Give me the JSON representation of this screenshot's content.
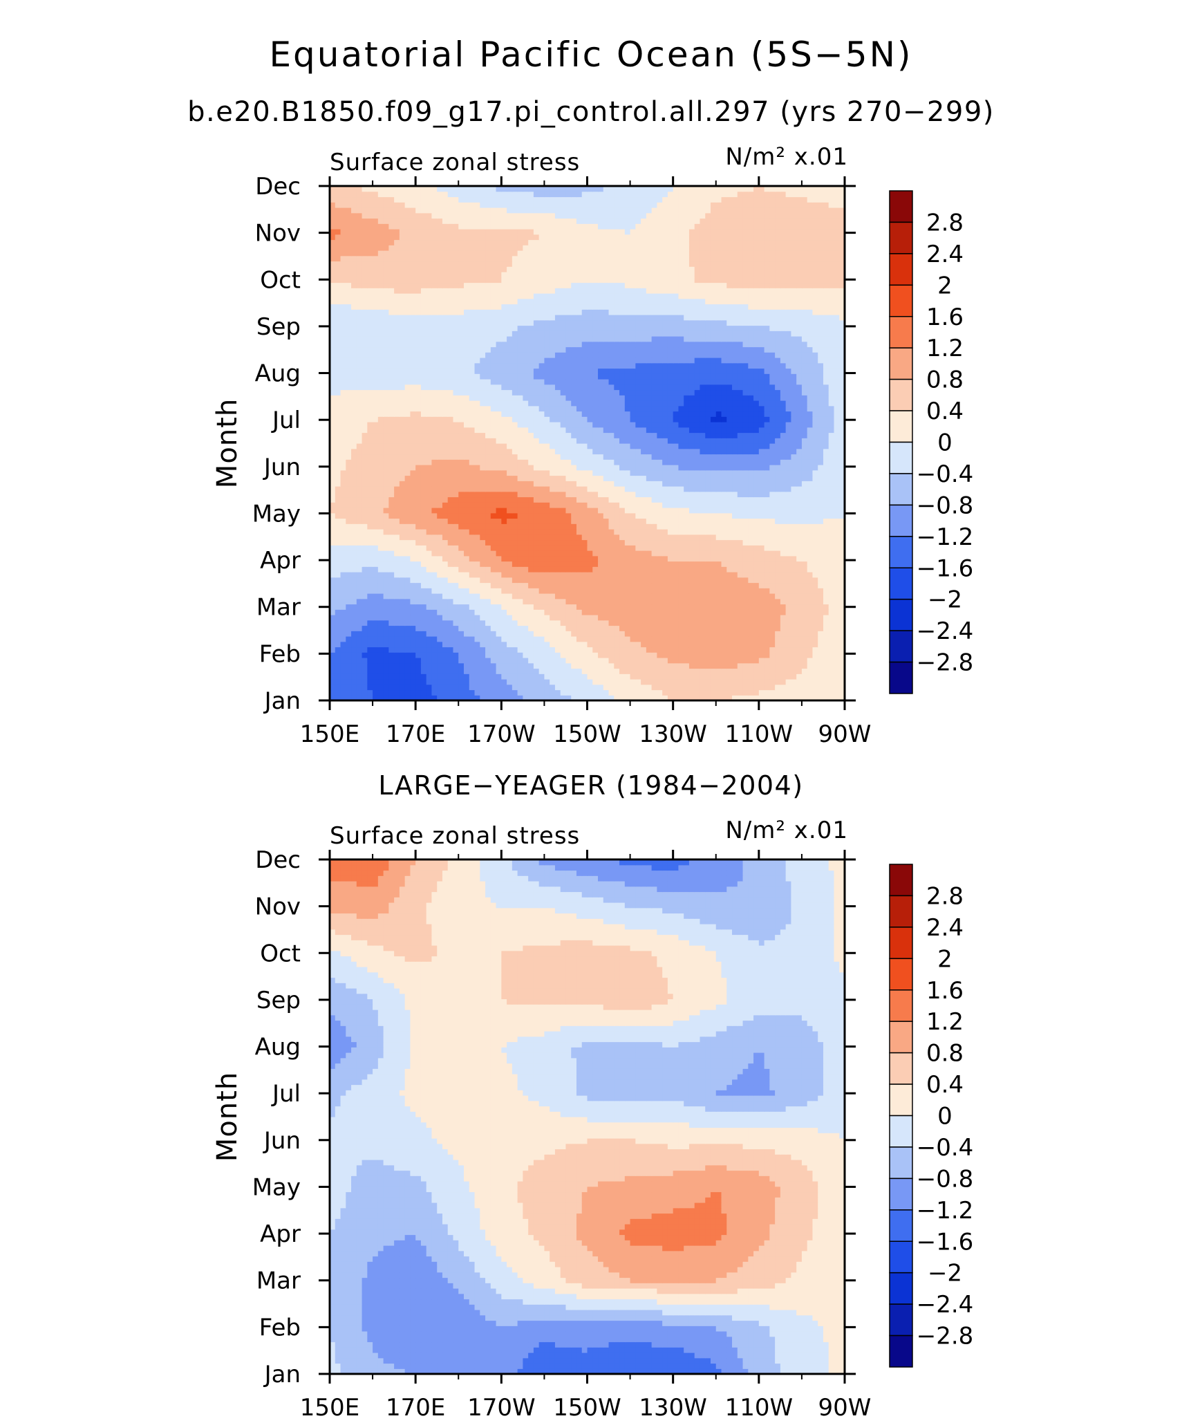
{
  "figure": {
    "title": "Equatorial Pacific Ocean (5S−5N)",
    "subtitle": "b.e20.B1850.f09_g17.pi_control.all.297 (yrs 270−299)",
    "second_panel_title": "LARGE−YEAGER (1984−2004)"
  },
  "colors": {
    "levels": [
      "#08088a",
      "#0a1fb0",
      "#0b33d4",
      "#1f4ee8",
      "#3f6ef0",
      "#7898f5",
      "#a9c2f7",
      "#d6e6fb",
      "#fdebd8",
      "#fbcdb4",
      "#f9a884",
      "#f77b4c",
      "#f0501f",
      "#d9310c",
      "#b71f09",
      "#8a0808"
    ]
  },
  "chart_data": [
    {
      "type": "heatmap",
      "title": "Surface zonal stress",
      "units": "N/m² x.01",
      "ylabel": "Month",
      "xlabel": "",
      "x_ticks": [
        "150E",
        "170E",
        "170W",
        "150W",
        "130W",
        "110W",
        "90W"
      ],
      "x_range": [
        150,
        270
      ],
      "y_ticks": [
        "Jan",
        "Feb",
        "Mar",
        "Apr",
        "May",
        "Jun",
        "Jul",
        "Aug",
        "Sep",
        "Oct",
        "Nov",
        "Dec"
      ],
      "colorbar_levels": [
        2.8,
        2.4,
        2,
        1.6,
        1.2,
        0.8,
        0.4,
        0,
        -0.4,
        -0.8,
        -1.2,
        -1.6,
        -2,
        -2.4,
        -2.8
      ],
      "x": [
        150,
        160,
        170,
        180,
        190,
        200,
        210,
        220,
        230,
        240,
        250,
        260,
        270
      ],
      "y": [
        "Jan",
        "Feb",
        "Mar",
        "Apr",
        "May",
        "Jun",
        "Jul",
        "Aug",
        "Sep",
        "Oct",
        "Nov",
        "Dec"
      ],
      "z": [
        [
          -1.2,
          -1.6,
          -1.8,
          -1.4,
          -1.0,
          -0.6,
          -0.3,
          0.1,
          0.4,
          0.4,
          0.3,
          0.2,
          0.0
        ],
        [
          -1.2,
          -1.7,
          -1.6,
          -1.2,
          -0.6,
          -0.2,
          0.3,
          0.7,
          0.9,
          1.0,
          0.9,
          0.5,
          0.1
        ],
        [
          -0.7,
          -1.0,
          -0.9,
          -0.5,
          0.0,
          0.5,
          0.9,
          1.0,
          1.0,
          1.0,
          1.0,
          0.7,
          0.2
        ],
        [
          -0.2,
          -0.3,
          0.0,
          0.6,
          1.2,
          1.5,
          1.3,
          1.0,
          0.8,
          0.8,
          0.6,
          0.4,
          0.1
        ],
        [
          0.4,
          0.7,
          1.1,
          1.4,
          1.7,
          1.5,
          1.0,
          0.4,
          0.1,
          0.0,
          -0.1,
          -0.1,
          0.0
        ],
        [
          0.3,
          0.6,
          0.8,
          0.9,
          0.7,
          0.3,
          -0.1,
          -0.5,
          -0.8,
          -0.9,
          -0.9,
          -0.6,
          -0.1
        ],
        [
          0.1,
          0.4,
          0.5,
          0.4,
          0.1,
          -0.3,
          -0.8,
          -1.2,
          -1.6,
          -2.1,
          -1.8,
          -1.0,
          -0.2
        ],
        [
          -0.1,
          -0.2,
          -0.2,
          -0.3,
          -0.6,
          -0.9,
          -1.2,
          -1.3,
          -1.4,
          -1.5,
          -1.3,
          -0.7,
          -0.1
        ],
        [
          -0.4,
          -0.3,
          -0.2,
          -0.2,
          -0.3,
          -0.5,
          -0.6,
          -0.6,
          -0.6,
          -0.5,
          -0.4,
          -0.3,
          -0.1
        ],
        [
          0.4,
          0.6,
          0.6,
          0.5,
          0.4,
          0.2,
          0.0,
          0.1,
          0.3,
          0.5,
          0.6,
          0.6,
          0.5
        ],
        [
          1.3,
          1.0,
          0.7,
          0.5,
          0.5,
          0.4,
          0.1,
          0.0,
          0.3,
          0.6,
          0.7,
          0.7,
          0.6
        ],
        [
          0.5,
          0.3,
          0.1,
          -0.2,
          -0.5,
          -0.6,
          -0.5,
          -0.3,
          0.0,
          0.3,
          0.4,
          0.3,
          0.2
        ]
      ]
    },
    {
      "type": "heatmap",
      "title": "Surface zonal stress",
      "units": "N/m² x.01",
      "ylabel": "Month",
      "xlabel": "",
      "x_ticks": [
        "150E",
        "170E",
        "170W",
        "150W",
        "130W",
        "110W",
        "90W"
      ],
      "x_range": [
        150,
        270
      ],
      "y_ticks": [
        "Jan",
        "Feb",
        "Mar",
        "Apr",
        "May",
        "Jun",
        "Jul",
        "Aug",
        "Sep",
        "Oct",
        "Nov",
        "Dec"
      ],
      "colorbar_levels": [
        2.8,
        2.4,
        2,
        1.6,
        1.2,
        0.8,
        0.4,
        0,
        -0.4,
        -0.8,
        -1.2,
        -1.6,
        -2,
        -2.4,
        -2.8
      ],
      "x": [
        150,
        160,
        170,
        180,
        190,
        200,
        210,
        220,
        230,
        240,
        250,
        260,
        270
      ],
      "y": [
        "Jan",
        "Feb",
        "Mar",
        "Apr",
        "May",
        "Jun",
        "Jul",
        "Aug",
        "Sep",
        "Oct",
        "Nov",
        "Dec"
      ],
      "z": [
        [
          -0.3,
          -0.7,
          -0.8,
          -0.9,
          -1.0,
          -1.6,
          -1.4,
          -1.5,
          -1.6,
          -1.3,
          -0.6,
          -0.2,
          0.1
        ],
        [
          -0.4,
          -0.9,
          -1.2,
          -1.1,
          -0.8,
          -1.0,
          -1.0,
          -1.1,
          -0.9,
          -0.8,
          -0.5,
          -0.1,
          0.1
        ],
        [
          -0.4,
          -0.9,
          -1.1,
          -0.7,
          -0.2,
          0.2,
          0.6,
          0.8,
          0.8,
          0.8,
          0.6,
          0.3,
          0.0
        ],
        [
          -0.4,
          -0.7,
          -0.8,
          -0.3,
          0.2,
          0.5,
          0.9,
          1.3,
          1.4,
          1.3,
          0.9,
          0.5,
          0.1
        ],
        [
          -0.2,
          -0.6,
          -0.5,
          -0.1,
          0.3,
          0.6,
          0.8,
          0.9,
          1.0,
          1.2,
          1.0,
          0.6,
          0.1
        ],
        [
          -0.3,
          -0.3,
          -0.1,
          0.1,
          0.2,
          0.3,
          0.4,
          0.4,
          0.3,
          0.3,
          0.3,
          0.2,
          0.0
        ],
        [
          -0.5,
          -0.2,
          0.1,
          0.2,
          0.1,
          -0.1,
          -0.5,
          -0.6,
          -0.5,
          -0.8,
          -0.9,
          -0.6,
          -0.2
        ],
        [
          -1.1,
          -0.6,
          0.1,
          0.2,
          0.0,
          -0.2,
          -0.5,
          -0.6,
          -0.4,
          -0.6,
          -0.8,
          -0.6,
          -0.2
        ],
        [
          -0.7,
          -0.4,
          0.1,
          0.2,
          0.4,
          0.5,
          0.5,
          0.7,
          0.4,
          0.1,
          -0.2,
          -0.3,
          -0.1
        ],
        [
          -0.1,
          0.3,
          0.5,
          0.3,
          0.4,
          0.5,
          0.6,
          0.5,
          0.3,
          0.0,
          -0.3,
          -0.3,
          0.1
        ],
        [
          0.9,
          1.0,
          0.5,
          0.1,
          0.0,
          0.0,
          -0.2,
          -0.4,
          -0.5,
          -0.7,
          -0.8,
          -0.3,
          0.1
        ],
        [
          1.4,
          1.5,
          0.8,
          0.3,
          -0.3,
          -0.9,
          -1.1,
          -1.3,
          -1.4,
          -1.0,
          -0.7,
          -0.2,
          0.1
        ]
      ]
    }
  ]
}
